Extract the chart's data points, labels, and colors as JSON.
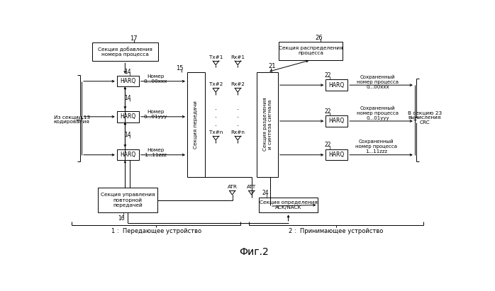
{
  "title": "Фиг.2",
  "bg_color": "#ffffff",
  "line_color": "#000000",
  "label_17": "17",
  "label_14": "14",
  "label_15": "15",
  "label_16": "16",
  "label_21": "21",
  "label_22": "22",
  "label_24": "24",
  "label_26": "26",
  "box_proc_add": "Секция добавления\nномера процесса",
  "box_proc_dist": "Секция распределения\nпроцесса",
  "box_tx": "Секция передачи",
  "box_rx": "Секция разделения\nи синтеза сигнала",
  "box_retrans": "Секция управления\nповторной\nпередачей",
  "box_ack": "Секция определения\nACK/NACK",
  "harq_label": "HARQ",
  "num1": "Номер\n0...00xxx",
  "num2": "Номер\n0...01yyy",
  "num3": "Номер\n1...11zzz",
  "saved1": "Сохраненный\nномер процесса\n0...00xxx",
  "saved2": "Сохраненный\nномер процесса\n0...01yyy",
  "saved3": "Сохраненный\nномер процесса\n1...11zzz",
  "from_label": "Из секции 13\nкодирования",
  "to_label": "В секцию 23\nвычисления\nCRC",
  "tx1": "Tx#1",
  "tx2": "Tx#2",
  "txn": "Tx#n",
  "rx1": "Rx#1",
  "rx2": "Rx#2",
  "rxn": "Rx#n",
  "atr": "ATR",
  "att": "ATT",
  "label1": "1 :  Передающее устройство",
  "label2": "2 :  Принимающее устройство"
}
